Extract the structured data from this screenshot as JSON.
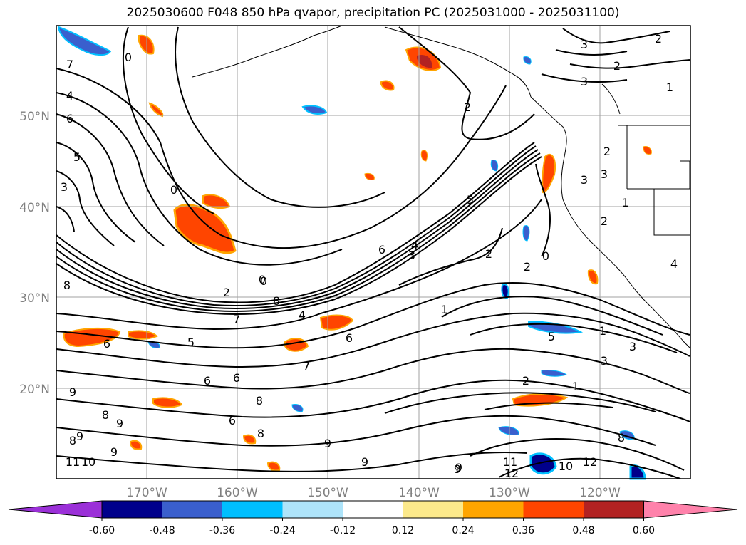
{
  "title": "2025030600 F048 850 hPa qvapor, precipitation PC (2025031000 - 2025031100)",
  "lat_labels": [
    "50°N",
    "40°N",
    "30°N",
    "20°N"
  ],
  "lon_labels": [
    "170°W",
    "160°W",
    "150°W",
    "140°W",
    "130°W",
    "120°W"
  ],
  "colorbar": {
    "ticks": [
      "-0.60",
      "-0.48",
      "-0.36",
      "-0.24",
      "-0.12",
      "0.12",
      "0.24",
      "0.36",
      "0.48",
      "0.60"
    ],
    "colors": [
      "#9b30d8",
      "#00008b",
      "#3a5fcd",
      "#00bfff",
      "#aee4fa",
      "#ffffff",
      "#fce98b",
      "#ffa500",
      "#ff4500",
      "#b22222",
      "#ff82ab"
    ]
  },
  "contour_labels": [
    "0",
    "7",
    "4",
    "6",
    "5",
    "3",
    "0",
    "0",
    "2",
    "3",
    "2",
    "3",
    "2",
    "5",
    "6",
    "4",
    "3",
    "2",
    "2",
    "1",
    "0",
    "2",
    "3",
    "4",
    "8",
    "2",
    "0",
    "8",
    "7",
    "1",
    "4",
    "5",
    "6",
    "3",
    "6",
    "5",
    "3",
    "7",
    "6",
    "1",
    "9",
    "8",
    "8",
    "6",
    "8",
    "9",
    "2",
    "1",
    "9",
    "9",
    "9",
    "8",
    "9",
    "11",
    "10",
    "9",
    "11",
    "12",
    "10",
    "12",
    "8",
    "1",
    "2",
    "3",
    "6",
    "9"
  ]
}
